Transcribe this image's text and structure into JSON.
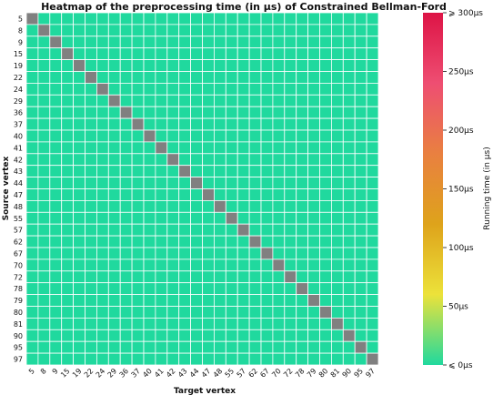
{
  "chart_data": {
    "type": "heatmap",
    "title": "Heatmap of the preprocessing time (in μs) of Constrained Bellman-Ford",
    "xlabel": "Target vertex",
    "ylabel": "Source vertex",
    "labels": [
      "5",
      "8",
      "9",
      "15",
      "19",
      "22",
      "24",
      "29",
      "36",
      "37",
      "40",
      "41",
      "42",
      "43",
      "44",
      "47",
      "48",
      "55",
      "57",
      "62",
      "67",
      "70",
      "72",
      "78",
      "79",
      "80",
      "81",
      "90",
      "95",
      "97"
    ],
    "values_us": "0 for every off-diagonal pair; diagonal (source = target) undefined",
    "off_diagonal_value": 0,
    "diagonal_value": null,
    "colorbar": {
      "label": "Running time (in μs)",
      "range": [
        0,
        300
      ],
      "ticks": [
        {
          "value": 0,
          "label": "⩽ 0μs"
        },
        {
          "value": 50,
          "label": "50μs"
        },
        {
          "value": 100,
          "label": "100μs"
        },
        {
          "value": 150,
          "label": "150μs"
        },
        {
          "value": 200,
          "label": "200μs"
        },
        {
          "value": 250,
          "label": "250μs"
        },
        {
          "value": 300,
          "label": "⩾ 300μs"
        }
      ],
      "colors": [
        "#20d99e",
        "#ece23a",
        "#dea31b",
        "#e98040",
        "#ee4e72",
        "#dd1446"
      ]
    },
    "cell_color_zero": "#20d99e",
    "cell_color_missing": "#808080",
    "grid_color": "#ffffff"
  }
}
